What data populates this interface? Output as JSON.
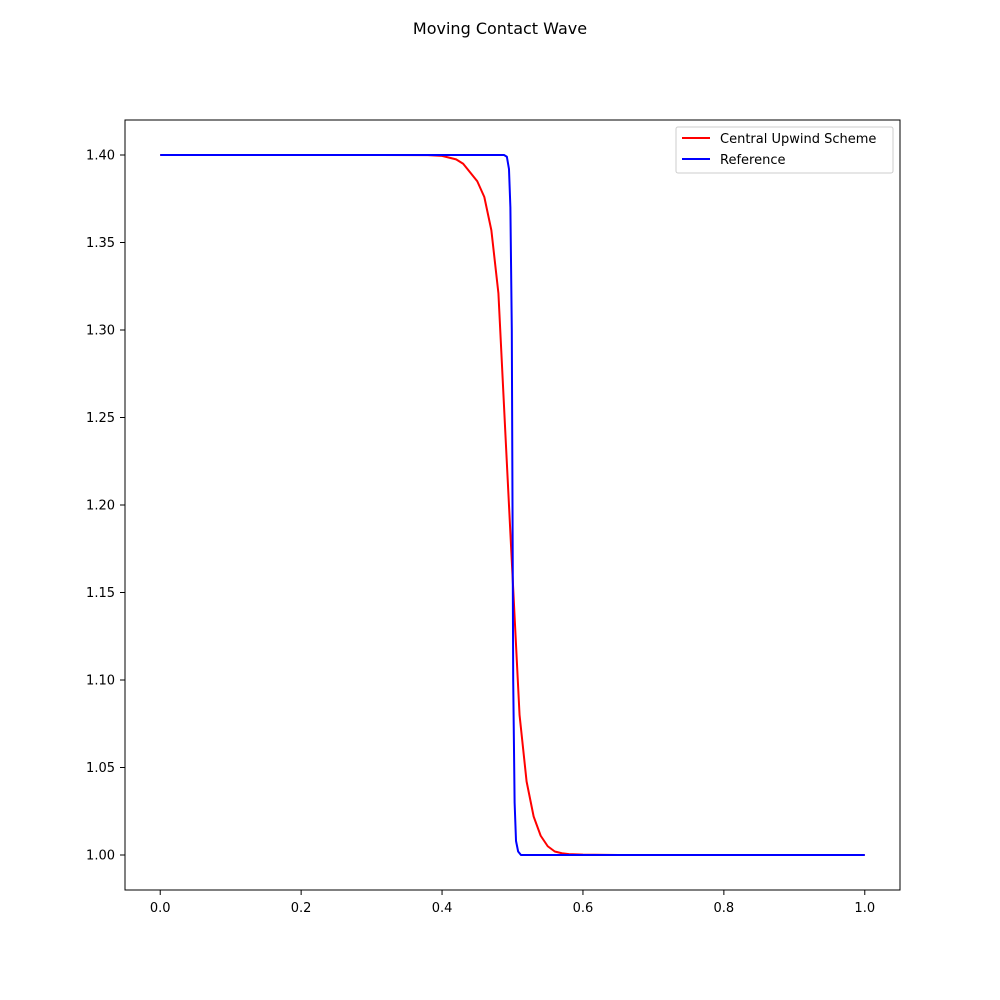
{
  "chart_data": {
    "type": "line",
    "title": "Moving Contact Wave",
    "xlabel": "",
    "ylabel": "",
    "xlim": [
      -0.05,
      1.05
    ],
    "ylim": [
      0.98,
      1.42
    ],
    "xticks": [
      0.0,
      0.2,
      0.4,
      0.6,
      0.8,
      1.0
    ],
    "xtick_labels": [
      "0.0",
      "0.2",
      "0.4",
      "0.6",
      "0.8",
      "1.0"
    ],
    "yticks": [
      1.0,
      1.05,
      1.1,
      1.15,
      1.2,
      1.25,
      1.3,
      1.35,
      1.4
    ],
    "ytick_labels": [
      "1.00",
      "1.05",
      "1.10",
      "1.15",
      "1.20",
      "1.25",
      "1.30",
      "1.35",
      "1.40"
    ],
    "grid": false,
    "legend_position": "top-right",
    "series": [
      {
        "name": "Central Upwind Scheme",
        "color": "#ff0000",
        "x": [
          0.0,
          0.3,
          0.38,
          0.4,
          0.42,
          0.43,
          0.44,
          0.45,
          0.46,
          0.47,
          0.48,
          0.49,
          0.5,
          0.51,
          0.52,
          0.53,
          0.54,
          0.55,
          0.56,
          0.57,
          0.58,
          0.6,
          0.65,
          1.0
        ],
        "y": [
          1.4,
          1.4,
          1.3999,
          1.3995,
          1.3975,
          1.395,
          1.39,
          1.385,
          1.376,
          1.357,
          1.321,
          1.24,
          1.16,
          1.08,
          1.042,
          1.022,
          1.011,
          1.005,
          1.002,
          1.001,
          1.0005,
          1.0002,
          1.0,
          1.0
        ]
      },
      {
        "name": "Reference",
        "color": "#0000ff",
        "x": [
          0.0,
          0.488,
          0.492,
          0.495,
          0.497,
          0.499,
          0.5,
          0.501,
          0.503,
          0.505,
          0.508,
          0.512,
          1.0
        ],
        "y": [
          1.4,
          1.4,
          1.399,
          1.392,
          1.37,
          1.3,
          1.2,
          1.1,
          1.03,
          1.008,
          1.002,
          1.0,
          1.0
        ]
      }
    ]
  }
}
